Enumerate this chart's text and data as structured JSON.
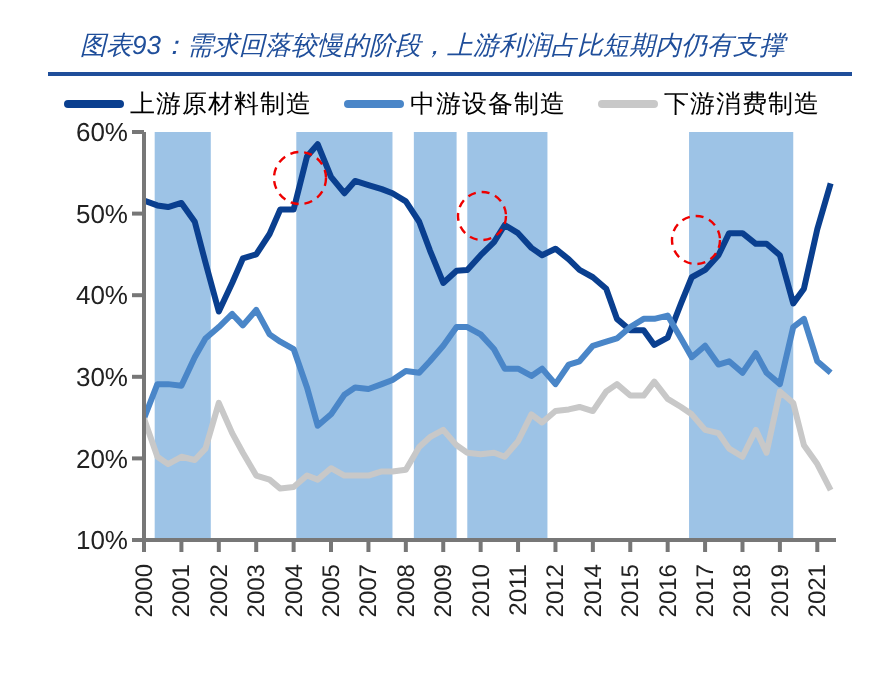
{
  "chart_data": {
    "type": "line",
    "title": "图表93：需求回落较慢的阶段，上游利润占比短期内仍有支撑",
    "x": [
      "2000-01",
      "2000-06",
      "2000-10",
      "2001-03",
      "2001-08",
      "2001-12",
      "2002-05",
      "2002-10",
      "2003-02",
      "2003-07",
      "2003-12",
      "2004-04",
      "2004-09",
      "2005-02",
      "2005-06",
      "2005-11",
      "2006-04",
      "2006-08",
      "2007-01",
      "2007-06",
      "2007-10",
      "2008-03",
      "2008-08",
      "2008-12",
      "2009-05",
      "2009-10",
      "2010-02",
      "2010-07",
      "2010-12",
      "2011-04",
      "2011-09",
      "2012-02",
      "2012-06",
      "2012-11",
      "2013-04",
      "2013-08",
      "2014-01",
      "2014-06",
      "2014-10",
      "2015-03",
      "2015-08",
      "2015-12",
      "2016-05",
      "2016-10",
      "2017-02",
      "2017-07",
      "2017-12",
      "2018-04",
      "2018-09",
      "2019-02",
      "2019-06",
      "2019-11",
      "2020-04",
      "2020-08",
      "2021-01",
      "2021-06"
    ],
    "series": [
      {
        "name": "上游原材料制造",
        "color": "#0a3f8f",
        "values": [
          51.6,
          51,
          50.8,
          51.3,
          49,
          44,
          38,
          41.5,
          44.5,
          45,
          47.5,
          50.5,
          50.5,
          57,
          58.5,
          54.5,
          52.5,
          54,
          53.5,
          53,
          52.5,
          51.5,
          49,
          45.5,
          41.5,
          43,
          43.1,
          44.9,
          46.5,
          48.6,
          47.6,
          45.8,
          44.9,
          45.7,
          44.4,
          43.1,
          42.2,
          40.8,
          37.1,
          35.7,
          35.7,
          33.9,
          34.8,
          39,
          42.2,
          43.1,
          44.9,
          47.6,
          47.6,
          46.3,
          46.3,
          44.9,
          39,
          40.8,
          48.1,
          53.7
        ]
      },
      {
        "name": "中游设备制造",
        "color": "#4a86c8",
        "values": [
          24.9,
          29.1,
          29.1,
          28.9,
          32.4,
          34.7,
          36.1,
          37.7,
          36.3,
          38.2,
          35.2,
          34.3,
          33.4,
          28.7,
          24,
          25.4,
          27.8,
          28.7,
          28.5,
          29.1,
          29.6,
          30.7,
          30.5,
          31.9,
          33.8,
          36.1,
          36.1,
          35.2,
          33.4,
          31,
          31,
          30.1,
          31,
          29.1,
          31.5,
          31.9,
          33.8,
          34.3,
          34.7,
          36.1,
          37.1,
          37.1,
          37.5,
          34.7,
          32.4,
          33.8,
          31.5,
          31.9,
          30.5,
          32.9,
          30.5,
          29.1,
          36.1,
          37.1,
          31.9,
          30.5
        ]
      },
      {
        "name": "下游消费制造",
        "color": "#c8c8c8",
        "values": [
          24.9,
          20.2,
          19.3,
          20.2,
          19.8,
          21.2,
          26.8,
          23.1,
          20.7,
          17.9,
          17.4,
          16.3,
          16.5,
          17.9,
          17.4,
          18.8,
          17.9,
          17.9,
          17.9,
          18.4,
          18.4,
          18.6,
          21.4,
          22.6,
          23.5,
          21.6,
          20.7,
          20.5,
          20.7,
          20.2,
          22.1,
          25.4,
          24.4,
          25.8,
          26,
          26.3,
          25.8,
          28.2,
          29.1,
          27.7,
          27.7,
          29.4,
          27.3,
          26.3,
          25.4,
          23.5,
          23.1,
          21.2,
          20.2,
          23.5,
          20.7,
          28.2,
          26.8,
          21.6,
          19.3,
          16.1
        ]
      }
    ],
    "xlim": [
      "2000-01",
      "2021-08"
    ],
    "xticks": [
      {
        "value": "2000-01",
        "label": "2000"
      },
      {
        "value": "2001-03",
        "label": "2001"
      },
      {
        "value": "2002-05",
        "label": "2002"
      },
      {
        "value": "2003-07",
        "label": "2003"
      },
      {
        "value": "2004-09",
        "label": "2004"
      },
      {
        "value": "2005-11",
        "label": "2005"
      },
      {
        "value": "2007-01",
        "label": "2007"
      },
      {
        "value": "2008-03",
        "label": "2008"
      },
      {
        "value": "2009-05",
        "label": "2009"
      },
      {
        "value": "2010-07",
        "label": "2010"
      },
      {
        "value": "2011-09",
        "label": "2011"
      },
      {
        "value": "2012-11",
        "label": "2012"
      },
      {
        "value": "2014-01",
        "label": "2014"
      },
      {
        "value": "2015-03",
        "label": "2015"
      },
      {
        "value": "2016-05",
        "label": "2016"
      },
      {
        "value": "2017-07",
        "label": "2017"
      },
      {
        "value": "2018-09",
        "label": "2018"
      },
      {
        "value": "2019-11",
        "label": "2019"
      },
      {
        "value": "2021-01",
        "label": "2021"
      }
    ],
    "ylim": [
      10,
      60
    ],
    "yticks": [
      {
        "value": 10,
        "label": "10%"
      },
      {
        "value": 20,
        "label": "20%"
      },
      {
        "value": 30,
        "label": "30%"
      },
      {
        "value": 40,
        "label": "40%"
      },
      {
        "value": 50,
        "label": "50%"
      },
      {
        "value": 60,
        "label": "60%"
      }
    ],
    "bands": [
      {
        "axis": "x",
        "from": "2000-05",
        "to": "2002-02",
        "color": "#9dc3e6"
      },
      {
        "axis": "x",
        "from": "2004-10",
        "to": "2007-10",
        "color": "#9dc3e6"
      },
      {
        "axis": "x",
        "from": "2008-06",
        "to": "2009-10",
        "color": "#9dc3e6"
      },
      {
        "axis": "x",
        "from": "2010-02",
        "to": "2012-08",
        "color": "#9dc3e6"
      },
      {
        "axis": "x",
        "from": "2017-01",
        "to": "2020-04",
        "color": "#9dc3e6"
      }
    ],
    "grid": false,
    "legend": "top",
    "marker": "none",
    "line_style": "solid"
  }
}
